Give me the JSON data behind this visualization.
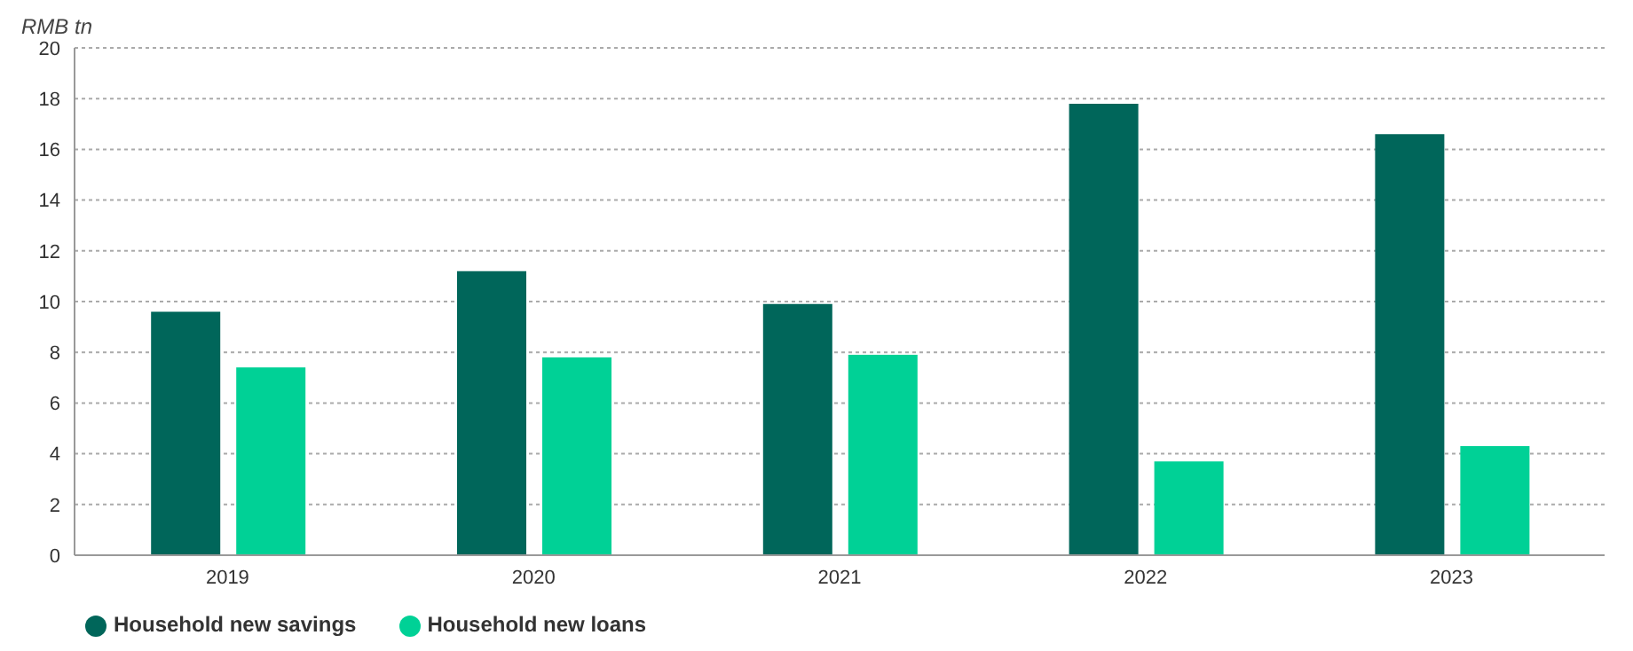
{
  "chart_data": {
    "type": "bar",
    "ylabel": "RMB tn",
    "categories": [
      "2019",
      "2020",
      "2021",
      "2022",
      "2023"
    ],
    "series": [
      {
        "name": "Household new savings",
        "color": "#00665a",
        "values": [
          9.6,
          11.2,
          9.9,
          17.8,
          16.6
        ]
      },
      {
        "name": "Household new loans",
        "color": "#00d196",
        "values": [
          7.4,
          7.8,
          7.9,
          3.7,
          4.3
        ]
      }
    ],
    "ylim": [
      0,
      20
    ],
    "yticks": [
      0,
      2,
      4,
      6,
      8,
      10,
      12,
      14,
      16,
      18,
      20
    ],
    "grid": "y",
    "legend": "bottom left"
  }
}
